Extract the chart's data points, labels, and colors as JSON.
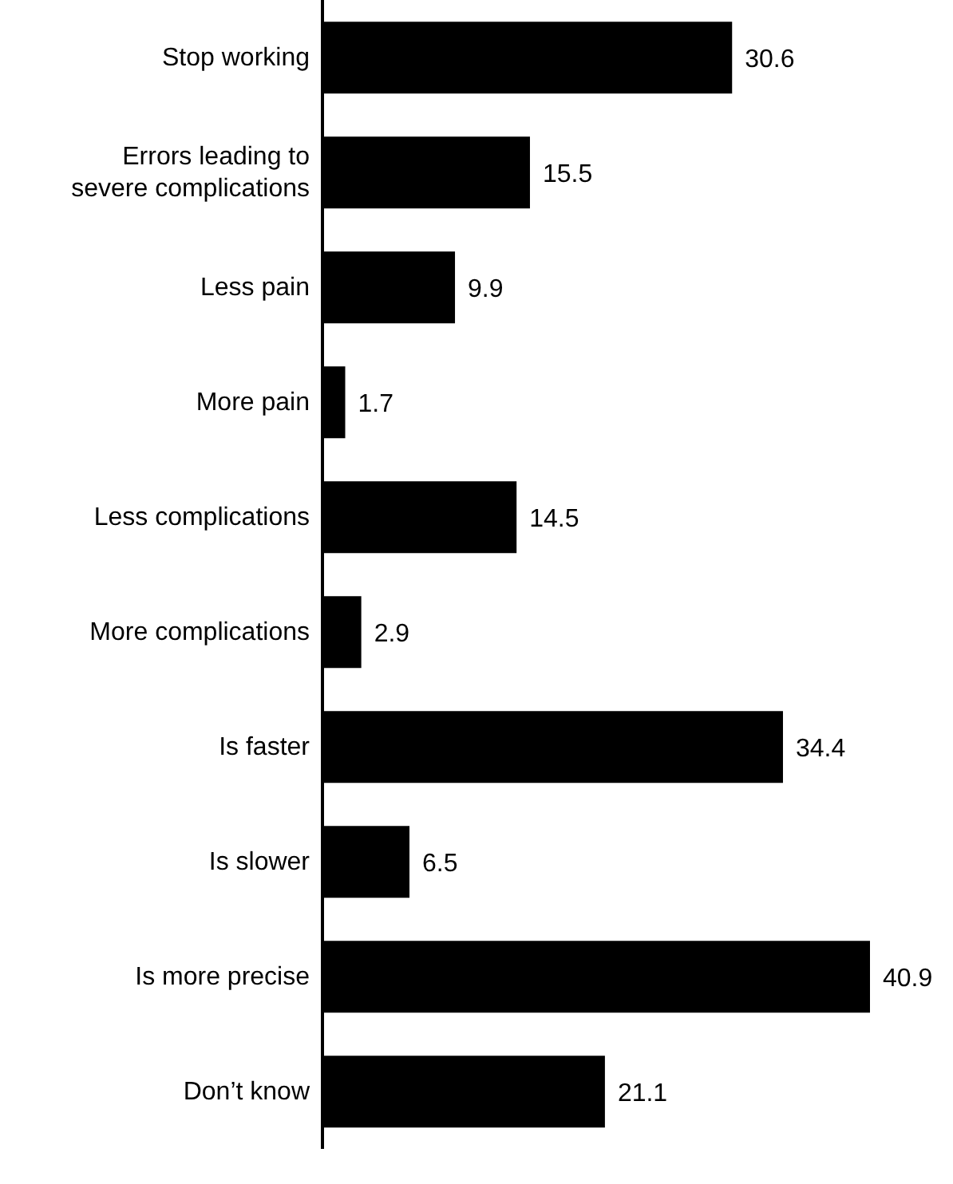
{
  "chart_data": {
    "type": "bar",
    "orientation": "horizontal",
    "categories": [
      "Stop working",
      "Errors leading to severe complications",
      "Less pain",
      "More pain",
      "Less complications",
      "More complications",
      "Is faster",
      "Is slower",
      "Is more precise",
      "Don’t know"
    ],
    "values": [
      30.6,
      15.5,
      9.9,
      1.7,
      14.5,
      2.9,
      34.4,
      6.5,
      40.9,
      21.1
    ],
    "color": "#000000",
    "data_labels": true,
    "tick_labels": "y",
    "grid": false,
    "legend": false
  }
}
